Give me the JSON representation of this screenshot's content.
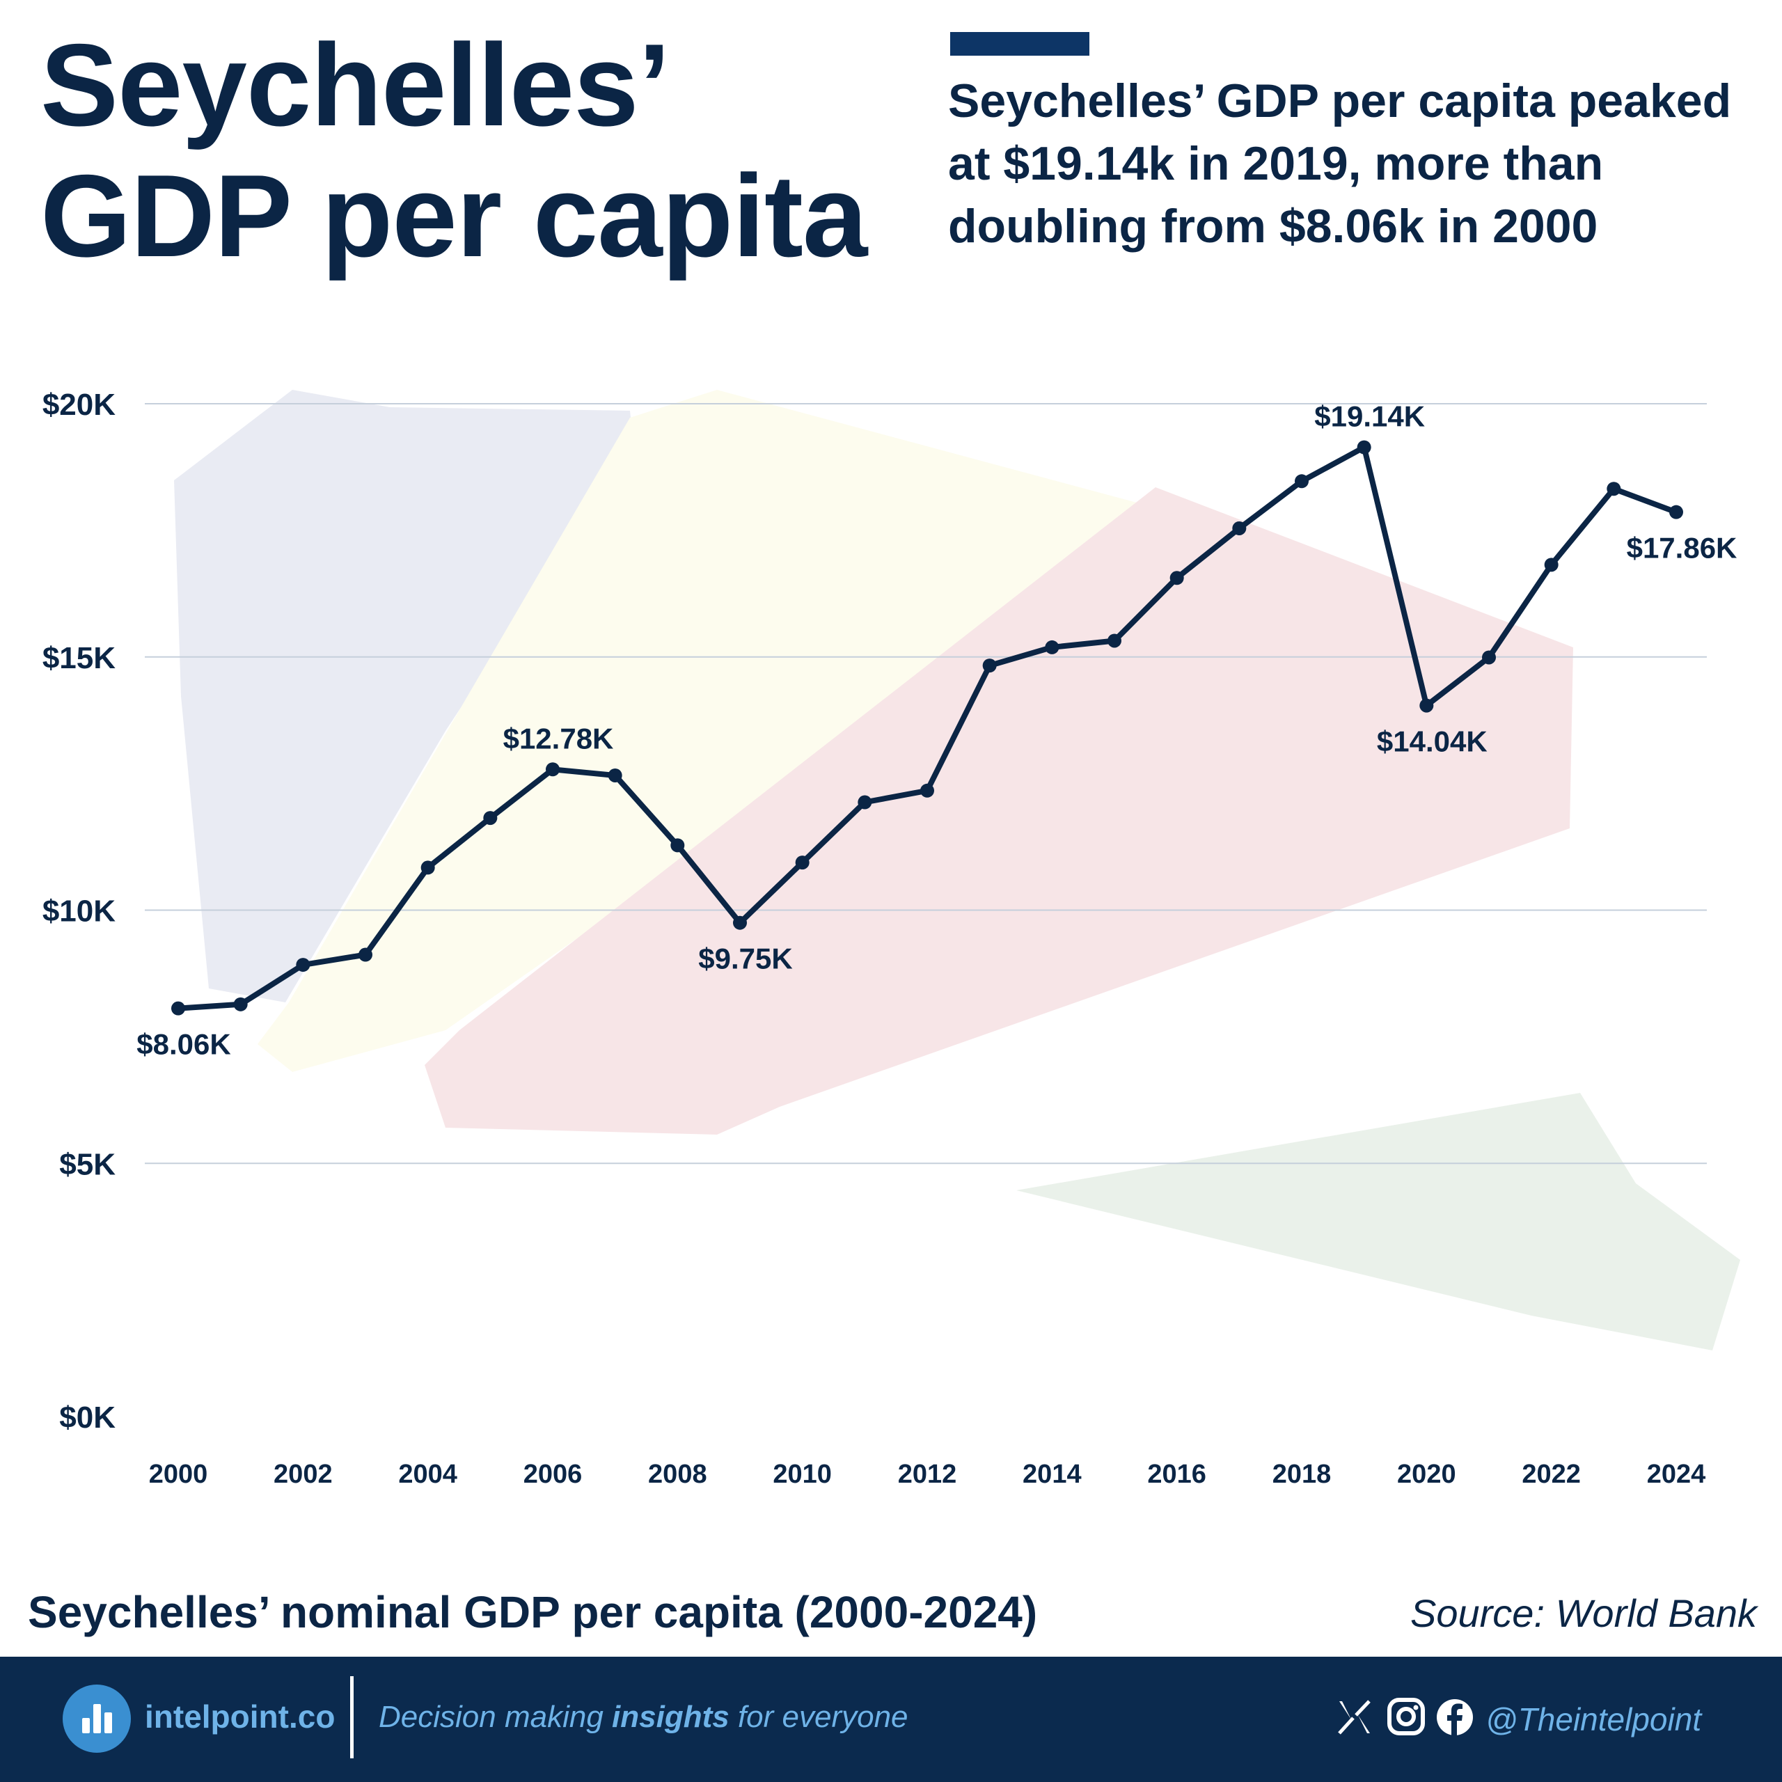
{
  "title_line1": "Seychelles’",
  "title_line2": "GDP per capita",
  "headline": "Seychelles’ GDP per capita peaked at $19.14k in 2019, more than doubling from $8.06k in 2000",
  "subtitle": "Seychelles’ nominal GDP per capita (2000-2024)",
  "source": "Source: World Bank",
  "colors": {
    "navy": "#0b2545",
    "footer": "#0b2a4e",
    "accent": "#3a8fd1",
    "grid": "#c5cfdb",
    "flag_blue": "#e9ebf3",
    "flag_yellow": "#fdfcee",
    "flag_red": "#f7e5e7",
    "flag_green": "#eaf1ea"
  },
  "chart_data": {
    "type": "line",
    "x": [
      2000,
      2001,
      2002,
      2003,
      2004,
      2005,
      2006,
      2007,
      2008,
      2009,
      2010,
      2011,
      2012,
      2013,
      2014,
      2015,
      2016,
      2017,
      2018,
      2019,
      2020,
      2021,
      2022,
      2023,
      2024
    ],
    "series": [
      {
        "values": [
          8.06,
          8.14,
          8.92,
          9.12,
          10.84,
          11.82,
          12.78,
          12.66,
          11.28,
          9.75,
          10.94,
          12.13,
          12.36,
          14.83,
          15.19,
          15.32,
          16.56,
          17.54,
          18.47,
          19.14,
          14.04,
          14.99,
          16.82,
          18.32,
          17.86
        ]
      }
    ],
    "x_ticks": [
      "2000",
      "2002",
      "2004",
      "2006",
      "2008",
      "2010",
      "2012",
      "2014",
      "2016",
      "2018",
      "2020",
      "2022",
      "2024"
    ],
    "y_ticks": [
      {
        "value": 0,
        "label": "$0K"
      },
      {
        "value": 5,
        "label": "$5K"
      },
      {
        "value": 10,
        "label": "$10K"
      },
      {
        "value": 15,
        "label": "$15K"
      },
      {
        "value": 20,
        "label": "$20K"
      }
    ],
    "ylim": [
      0,
      20
    ],
    "xlim": [
      2000,
      2024
    ],
    "grid": true,
    "annotations": [
      {
        "x": 2000,
        "y": 8.06,
        "label": "$8.06K",
        "position": "below"
      },
      {
        "x": 2006,
        "y": 12.78,
        "label": "$12.78K",
        "position": "above"
      },
      {
        "x": 2009,
        "y": 9.75,
        "label": "$9.75K",
        "position": "below"
      },
      {
        "x": 2019,
        "y": 19.14,
        "label": "$19.14K",
        "position": "above"
      },
      {
        "x": 2020,
        "y": 14.04,
        "label": "$14.04K",
        "position": "below"
      },
      {
        "x": 2024,
        "y": 17.86,
        "label": "$17.86K",
        "position": "below"
      }
    ]
  },
  "footer": {
    "brand": "intelpoint.co",
    "tagline_pre": "Decision making ",
    "tagline_bold": "insights",
    "tagline_post": " for everyone",
    "handle": "@Theintelpoint",
    "icons": [
      "x-icon",
      "instagram-icon",
      "facebook-icon"
    ]
  }
}
